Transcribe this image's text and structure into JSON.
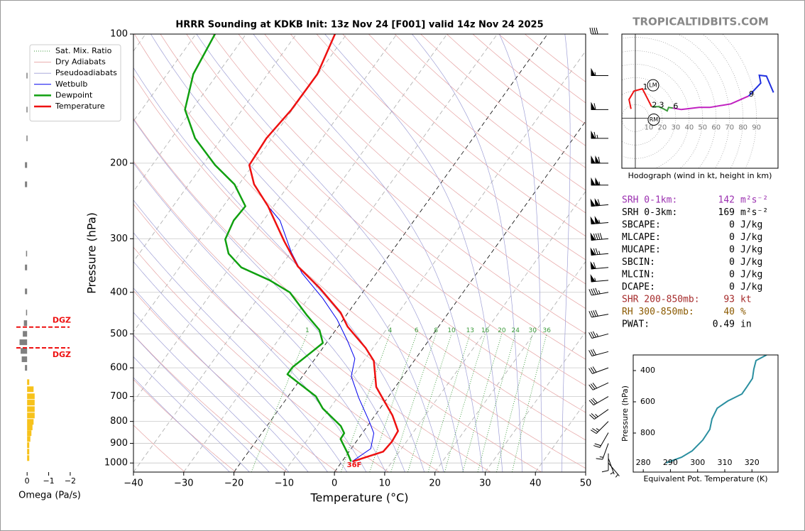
{
  "watermark": "TROPICALTIDBITS.COM",
  "chart_data": [
    {
      "type": "skewt",
      "title": "HRRR Sounding at KDKB Init: 13z Nov 24 [F001] valid 14z Nov 24 2025",
      "xlabel": "Temperature (°C)",
      "ylabel": "Pressure (hPa)",
      "xlim": [
        -40,
        50
      ],
      "xticks": [
        {
          "value": -40,
          "label": "−40"
        },
        {
          "value": -30,
          "label": "−30"
        },
        {
          "value": -20,
          "label": "−20"
        },
        {
          "value": -10,
          "label": "−10"
        },
        0,
        10,
        20,
        30,
        40,
        50
      ],
      "ylim": [
        1050,
        100
      ],
      "log_y": true,
      "grid": true,
      "yticks": [
        100,
        200,
        300,
        400,
        500,
        600,
        700,
        800,
        900,
        1000
      ],
      "reference_lines": [
        {
          "name": "Sat. Mix. Ratio",
          "color": "#3a9a3a"
        },
        {
          "name": "Dry Adiabats",
          "color": "#e6a3a3"
        },
        {
          "name": "Pseudoadiabats",
          "color": "#9f9fd6"
        }
      ],
      "mixing_ratios": [
        1,
        4,
        6,
        8,
        10,
        13,
        16,
        20,
        24,
        30,
        36
      ],
      "series": [
        {
          "name": "Wetbulb",
          "color": "#0000ee",
          "linewidth": 1,
          "pressure": [
            992,
            926,
            852,
            796,
            704,
            628,
            571,
            519,
            463,
            413,
            361,
            322,
            272,
            252
          ],
          "values": [
            2.0,
            3.9,
            2.3,
            -0.5,
            -5.8,
            -10.3,
            -12.1,
            -16.1,
            -21.2,
            -27.1,
            -34.8,
            -40.0,
            -46.7,
            -51.1
          ]
        },
        {
          "name": "Dewpoint",
          "color": "#10a010",
          "linewidth": 2.5,
          "pressure": [
            992,
            948,
            879,
            852,
            820,
            746,
            699,
            621,
            598,
            550,
            525,
            490,
            451,
            400,
            375,
            350,
            325,
            301,
            272,
            252,
            224,
            202,
            175,
            150,
            124,
            100
          ],
          "values": [
            1.8,
            -0.1,
            -3.5,
            -3.6,
            -5.3,
            -11.4,
            -14.5,
            -23.3,
            -23.3,
            -21.6,
            -20.7,
            -23.2,
            -28.0,
            -34.5,
            -40.2,
            -47.7,
            -52.2,
            -54.9,
            -55.9,
            -55.6,
            -60.9,
            -67.5,
            -75.3,
            -81.4,
            -84.8,
            -86.2
          ]
        },
        {
          "name": "Temperature",
          "color": "#ee1111",
          "linewidth": 2.5,
          "pressure": [
            992,
            941,
            892,
            842,
            775,
            710,
            665,
            578,
            539,
            481,
            446,
            390,
            348,
            304,
            252,
            224,
            202,
            175,
            150,
            124,
            100
          ],
          "values": [
            2.1,
            6.8,
            7.1,
            6.8,
            3.5,
            -0.7,
            -3.8,
            -8.0,
            -11.5,
            -18.1,
            -21.5,
            -29.3,
            -36.6,
            -42.9,
            -51.1,
            -57.0,
            -60.7,
            -61.1,
            -60.2,
            -60.1,
            -62.3
          ]
        }
      ],
      "surface_label": "36F",
      "wind": {
        "pressure": [
          100,
          125,
          150,
          175,
          200,
          225,
          250,
          275,
          300,
          325,
          350,
          375,
          400,
          450,
          500,
          550,
          600,
          650,
          700,
          750,
          800,
          850,
          900,
          950,
          975,
          1000
        ],
        "direction": [
          270,
          270,
          270,
          270,
          270,
          270,
          265,
          265,
          265,
          265,
          265,
          265,
          260,
          260,
          255,
          255,
          250,
          245,
          240,
          235,
          225,
          210,
          200,
          180,
          160,
          140
        ],
        "speed": [
          40,
          55,
          60,
          65,
          110,
          105,
          110,
          105,
          90,
          75,
          60,
          55,
          45,
          40,
          35,
          30,
          30,
          30,
          30,
          25,
          25,
          20,
          15,
          10,
          5,
          5
        ]
      }
    },
    {
      "type": "hbar",
      "xlabel": "Omega (Pa/s)",
      "xlim": [
        0.5,
        -2.2
      ],
      "xticks": [
        0,
        {
          "value": -1,
          "label": "−1"
        },
        {
          "value": -2,
          "label": "−2"
        }
      ],
      "ylim": [
        1050,
        100
      ],
      "log_y": true,
      "color_positive": "#808080",
      "color_negative": "#f7c21b",
      "pressure": [
        125,
        150,
        175,
        202,
        224,
        325,
        350,
        398,
        446,
        472,
        500,
        523,
        548,
        573,
        600,
        648,
        673,
        699,
        723,
        749,
        775,
        802,
        826,
        852,
        879,
        909,
        941,
        974
      ],
      "values": [
        0.03,
        0.03,
        0.03,
        0.1,
        0.1,
        0.05,
        0.1,
        0.1,
        0.05,
        0.15,
        0.2,
        0.35,
        0.3,
        0.25,
        0.1,
        -0.1,
        -0.3,
        -0.35,
        -0.35,
        -0.35,
        -0.35,
        -0.3,
        -0.25,
        -0.2,
        -0.15,
        -0.1,
        -0.1,
        -0.1
      ],
      "dgz": {
        "label": "DGZ",
        "top": 482,
        "bottom": 539,
        "color": "#ee1111"
      }
    },
    {
      "type": "hodograph",
      "caption": "Hodograph (wind in kt, height in km)",
      "xlim": [
        -10,
        106
      ],
      "ylim": [
        -37,
        62
      ],
      "rticks": [
        10,
        20,
        30,
        40,
        50,
        60,
        70,
        80,
        90
      ],
      "series": [
        {
          "color": "#ee1111",
          "u": [
            -3.2,
            -4.7,
            -1,
            5.3,
            8.9,
            12.1
          ],
          "v": [
            6.8,
            13.7,
            20,
            21.6,
            14.7,
            8.4
          ]
        },
        {
          "color": "#3a9a3a",
          "u": [
            12.1,
            17.4,
            21,
            23.7,
            24.7,
            27.9
          ],
          "v": [
            8.4,
            8.4,
            6.8,
            5.3,
            7.9,
            7.4
          ]
        },
        {
          "color": "#c020c0",
          "u": [
            27.9,
            34.2,
            47.4,
            55.3,
            71,
            84.2
          ],
          "v": [
            7.4,
            6.3,
            7.9,
            7.9,
            10.5,
            16.3
          ]
        },
        {
          "color": "#2030e0",
          "u": [
            84.2,
            93.2,
            92.1,
            97.4,
            102.6
          ],
          "v": [
            16.3,
            25.8,
            31.6,
            31,
            18.9
          ]
        }
      ],
      "height_marks": [
        {
          "label": "1",
          "u": 5.3,
          "v": 21.6
        },
        {
          "label": "2",
          "u": 12.1,
          "v": 8.4
        },
        {
          "label": "3",
          "u": 17.4,
          "v": 8.4
        },
        {
          "label": "6",
          "u": 27.9,
          "v": 7.4
        },
        {
          "label": "9",
          "u": 84.2,
          "v": 16.3
        }
      ],
      "storm_motion": [
        {
          "label": "LM",
          "u": 13.2,
          "v": 24.2
        },
        {
          "label": "RM",
          "u": 13.7,
          "v": -1.1
        }
      ]
    },
    {
      "type": "line",
      "xlabel": "Equivalent Pot. Temperature (K)",
      "ylabel": "Pressure (hPa)",
      "xlim": [
        276.3,
        329.6
      ],
      "xticks": [
        280,
        290,
        300,
        310,
        320
      ],
      "ylim": [
        1050,
        300
      ],
      "log_y": false,
      "yticks": [
        400,
        600,
        800
      ],
      "color": "#2a8fa0",
      "pressure": [
        991,
        955,
        914,
        845,
        777,
        709,
        641,
        595,
        550,
        505,
        450,
        391,
        336,
        300
      ],
      "values": [
        288.4,
        294.1,
        298.0,
        301.9,
        304.5,
        305.3,
        307.2,
        311.1,
        316.3,
        318.1,
        320.2,
        320.7,
        321.5,
        325.4
      ]
    }
  ],
  "stats": [
    {
      "label": "SRH 0-1km:",
      "value": 142,
      "unit": "m²s⁻²",
      "color": "#9b30b0"
    },
    {
      "label": "SRH 0-3km:",
      "value": 169,
      "unit": "m²s⁻²",
      "color": "#000000"
    },
    {
      "label": "SBCAPE:",
      "value": 0,
      "unit": "J/kg",
      "color": "#000000"
    },
    {
      "label": "MLCAPE:",
      "value": 0,
      "unit": "J/kg",
      "color": "#000000"
    },
    {
      "label": "MUCAPE:",
      "value": 0,
      "unit": "J/kg",
      "color": "#000000"
    },
    {
      "label": "SBCIN:",
      "value": 0,
      "unit": "J/kg",
      "color": "#000000"
    },
    {
      "label": "MLCIN:",
      "value": 0,
      "unit": "J/kg",
      "color": "#000000"
    },
    {
      "label": "DCAPE:",
      "value": 0,
      "unit": "J/kg",
      "color": "#000000"
    },
    {
      "label": "SHR 200-850mb:",
      "value": 93,
      "unit": "kt",
      "color": "#a52a2a"
    },
    {
      "label": "RH 300-850mb:",
      "value": 40,
      "unit": "%",
      "color": "#8b5a00"
    },
    {
      "label": "PWAT:",
      "value": 0.49,
      "unit": "in",
      "color": "#000000"
    }
  ]
}
